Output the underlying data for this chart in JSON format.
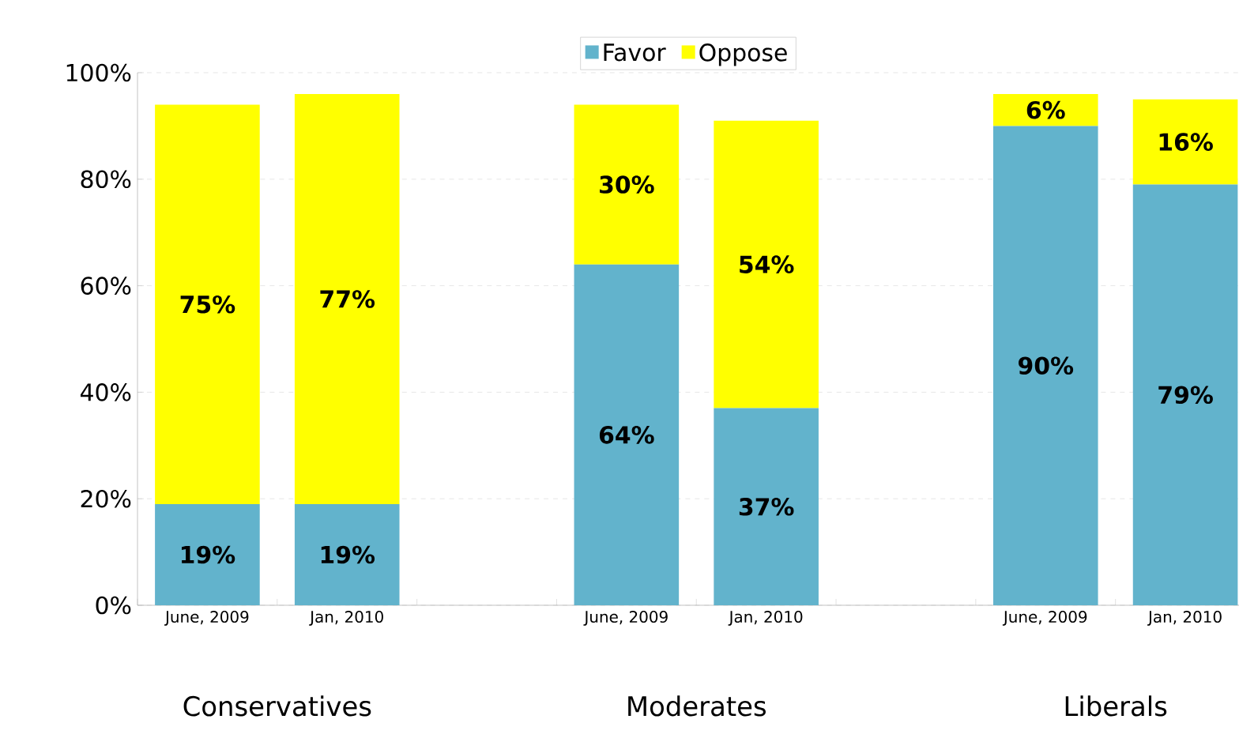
{
  "chart_data": {
    "type": "bar",
    "stacked": true,
    "categories": [
      "June, 2009",
      "Jan, 2010",
      null,
      "June, 2009",
      "Jan, 2010",
      null,
      "June, 2009",
      "Jan, 2010"
    ],
    "series": [
      {
        "name": "Favor",
        "color": "#62b3cc",
        "values": [
          19,
          19,
          null,
          64,
          37,
          null,
          90,
          79
        ],
        "value_labels": [
          "19%",
          "19%",
          null,
          "64%",
          "37%",
          null,
          "90%",
          "79%"
        ]
      },
      {
        "name": "Oppose",
        "color": "#ffff00",
        "values": [
          75,
          77,
          null,
          30,
          54,
          null,
          6,
          16
        ],
        "value_labels": [
          "75%",
          "77%",
          null,
          "30%",
          "54%",
          null,
          "6%",
          "16%"
        ]
      }
    ],
    "ylim": [
      0,
      100
    ],
    "yticks": [
      {
        "value": 0,
        "label": "0%"
      },
      {
        "value": 20,
        "label": "20%"
      },
      {
        "value": 40,
        "label": "40%"
      },
      {
        "value": 60,
        "label": "60%"
      },
      {
        "value": 80,
        "label": "80%"
      },
      {
        "value": 100,
        "label": "100%"
      }
    ],
    "grid": "y",
    "legend": "top",
    "annotations": [
      "Conservatives",
      "Moderates",
      "Liberals"
    ]
  }
}
